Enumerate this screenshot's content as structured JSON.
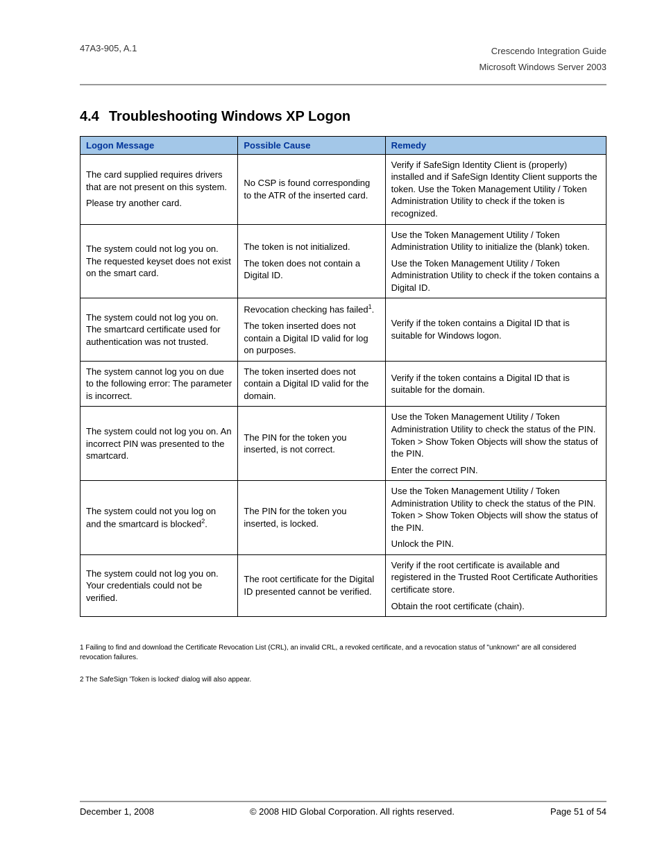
{
  "header": {
    "left": "47A3-905, A.1",
    "right_line1": "Crescendo Integration Guide",
    "right_line2": "Microsoft Windows Server 2003"
  },
  "section": {
    "number": "4.4",
    "title": "Troubleshooting Windows XP Logon"
  },
  "table": {
    "columns": [
      "Logon Message",
      "Possible Cause",
      "Remedy"
    ],
    "header_bg": "#a3c7e8",
    "header_text_color": "#003399",
    "border_color": "#000000",
    "rows": [
      {
        "msg": [
          "The card supplied requires drivers that are not present on this system.",
          "Please try another card."
        ],
        "cause": [
          "No CSP is found corresponding to the ATR of the inserted card."
        ],
        "remedy": [
          "Verify if SafeSign Identity Client is (properly) installed and if SafeSign Identity Client supports the token. Use the Token Management Utility / Token Administration Utility to check if the token is recognized."
        ]
      },
      {
        "msg": [
          "The system could not log you on. The requested keyset does not exist on the smart card."
        ],
        "cause": [
          "The token is not initialized.",
          "The token does not contain a Digital ID."
        ],
        "remedy": [
          "Use the Token Management Utility / Token Administration Utility to initialize the (blank) token.",
          "Use the Token Management Utility / Token Administration Utility to check if the token contains a Digital ID."
        ]
      },
      {
        "msg": [
          "The system could not log you on. The smartcard certificate used for authentication was not trusted."
        ],
        "cause_html": "Revocation checking has failed<sup>1</sup>.|The token inserted does not contain a Digital ID valid for log on purposes.",
        "remedy": [
          "Verify if the token contains a Digital ID that is suitable for Windows logon."
        ]
      },
      {
        "msg": [
          "The system cannot log you on due to the following error: The parameter is incorrect."
        ],
        "cause": [
          "The token inserted does not contain a Digital ID valid for the domain."
        ],
        "remedy": [
          "Verify if the token contains a Digital ID that is suitable for the domain."
        ]
      },
      {
        "msg": [
          "The system could not log you on. An incorrect PIN was presented to the smartcard."
        ],
        "cause": [
          "The PIN for the token you inserted, is not correct."
        ],
        "remedy": [
          "Use the Token Management Utility / Token Administration Utility to check the status of the PIN. Token > Show Token Objects will show the status of the PIN.",
          "Enter the correct PIN."
        ]
      },
      {
        "msg_html": "The system could not you log on and the smartcard is blocked<sup>2</sup>.",
        "cause": [
          "The PIN for the token you inserted, is locked."
        ],
        "remedy": [
          "Use the Token Management Utility / Token Administration Utility to check the status of the PIN. Token > Show Token Objects will show the status of the PIN.",
          "Unlock the PIN."
        ]
      },
      {
        "msg": [
          "The system could not log you on. Your credentials could not be verified."
        ],
        "cause": [
          "The root certificate for the Digital ID presented cannot be verified."
        ],
        "remedy": [
          "Verify if the root certificate is available and registered in the Trusted Root Certificate Authorities certificate store.",
          "Obtain the root certificate (chain)."
        ]
      }
    ]
  },
  "footnotes": {
    "f1": "1 Failing to find and download the Certificate Revocation List (CRL), an invalid CRL, a revoked certificate, and a revocation status of \"unknown\" are all considered revocation failures.",
    "f2": "2 The SafeSign 'Token is locked' dialog will also appear."
  },
  "footer": {
    "left": "December 1, 2008",
    "center": "© 2008 HID Global Corporation.  All rights reserved.",
    "right": "Page 51 of 54"
  },
  "style": {
    "font_family": "Arial, Helvetica, sans-serif",
    "body_font_size": 13,
    "title_font_size": 20,
    "footnote_font_size": 10,
    "hr_color": "#999999",
    "page_bg": "#ffffff",
    "text_color": "#000000"
  }
}
